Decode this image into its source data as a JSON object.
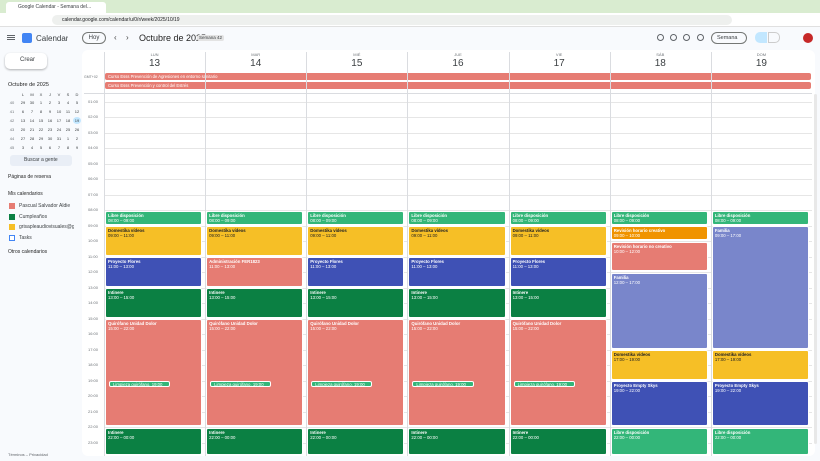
{
  "browser": {
    "tab": "Google Calendar - Semana del...",
    "url": "calendar.google.com/calendar/u/0/r/week/2025/10/19"
  },
  "header": {
    "app": "Calendar",
    "today": "Hoy",
    "period": "Octubre de 2025",
    "week": "Semana 42",
    "view": "Semana"
  },
  "sidebar": {
    "create": "Crear",
    "mini_title": "Octubre de 2025",
    "weekdays": [
      "L",
      "M",
      "X",
      "J",
      "V",
      "S",
      "D"
    ],
    "weeks": [
      {
        "num": "40",
        "days": [
          "29",
          "30",
          "1",
          "2",
          "3",
          "4",
          "5"
        ]
      },
      {
        "num": "41",
        "days": [
          "6",
          "7",
          "8",
          "9",
          "10",
          "11",
          "12"
        ]
      },
      {
        "num": "42",
        "days": [
          "13",
          "14",
          "15",
          "16",
          "17",
          "18",
          "19"
        ]
      },
      {
        "num": "43",
        "days": [
          "20",
          "21",
          "22",
          "23",
          "24",
          "25",
          "26"
        ]
      },
      {
        "num": "44",
        "days": [
          "27",
          "28",
          "29",
          "30",
          "31",
          "1",
          "2"
        ]
      },
      {
        "num": "45",
        "days": [
          "3",
          "4",
          "5",
          "6",
          "7",
          "8",
          "9"
        ]
      }
    ],
    "search": "Buscar a gente",
    "booking": "Páginas de reserva",
    "my_title": "Mis calendarios",
    "my_calendars": [
      {
        "name": "Pascual Salvador Aldie",
        "color": "#e67c73"
      },
      {
        "name": "Cumpleaños",
        "color": "#0b8043"
      },
      {
        "name": "grisapleaudiovisuales@g...",
        "color": "#f6bf26"
      },
      {
        "name": "Tasks",
        "color": "#4285f4"
      }
    ],
    "other_title": "Otros calendarios",
    "footer": "Términos – Privacidad"
  },
  "timezone": "GMT+02",
  "all_day": [
    {
      "title": "Curso Esss Prevención de Agresiones en entorno sanitario",
      "color": "#e67c73"
    },
    {
      "title": "Curso Esss Prevención y control del Estrés",
      "color": "#e67c73"
    }
  ],
  "hours": [
    "01:00",
    "02:00",
    "03:00",
    "04:00",
    "05:00",
    "06:00",
    "07:00",
    "08:00",
    "09:00",
    "10:00",
    "11:00",
    "12:00",
    "13:00",
    "14:00",
    "15:00",
    "16:00",
    "17:00",
    "18:00",
    "19:00",
    "20:00",
    "21:00",
    "22:00",
    "23:00"
  ],
  "days": [
    {
      "dow": "LUN",
      "num": "13",
      "events": [
        {
          "title": "Libre disposición",
          "time": "08:00 – 09:00",
          "color": "#33b679"
        },
        {
          "title": "Domestika vídeos",
          "time": "09:00 – 11:00",
          "color": "#f6bf26"
        },
        {
          "title": "Proyecto Flores",
          "time": "11:00 – 13:00",
          "color": "#3f51b5"
        },
        {
          "title": "Intinere",
          "time": "13:00 – 15:00",
          "color": "#0b8043"
        },
        {
          "title": "Quirófano Unidad Dolor",
          "time": "15:00 – 22:00",
          "color": "#e67c73",
          "sub": "Limpieza quirófano, 19:00"
        },
        {
          "title": "Intinere",
          "time": "22:00 – 00:00",
          "color": "#0b8043"
        }
      ]
    },
    {
      "dow": "MAR",
      "num": "14",
      "events": [
        {
          "title": "Libre disposición",
          "time": "08:00 – 09:00",
          "color": "#33b679"
        },
        {
          "title": "Domestika vídeos",
          "time": "09:00 – 11:00",
          "color": "#f6bf26"
        },
        {
          "title": "Administración FER1823",
          "time": "11:00 – 13:00",
          "color": "#e67c73"
        },
        {
          "title": "Intinere",
          "time": "13:00 – 15:00",
          "color": "#0b8043"
        },
        {
          "title": "Quirófano Unidad Dolor",
          "time": "15:00 – 22:00",
          "color": "#e67c73",
          "sub": "Limpieza quirófano, 19:00"
        },
        {
          "title": "Intinere",
          "time": "22:00 – 00:00",
          "color": "#0b8043"
        }
      ]
    },
    {
      "dow": "MIÉ",
      "num": "15",
      "events": [
        {
          "title": "Libre disposición",
          "time": "08:00 – 09:00",
          "color": "#33b679"
        },
        {
          "title": "Domestika vídeos",
          "time": "09:00 – 11:00",
          "color": "#f6bf26"
        },
        {
          "title": "Proyecto Flores",
          "time": "11:00 – 13:00",
          "color": "#3f51b5"
        },
        {
          "title": "Intinere",
          "time": "13:00 – 15:00",
          "color": "#0b8043"
        },
        {
          "title": "Quirófano Unidad Dolor",
          "time": "15:00 – 22:00",
          "color": "#e67c73",
          "sub": "Limpieza quirófano, 19:00"
        },
        {
          "title": "Intinere",
          "time": "22:00 – 00:00",
          "color": "#0b8043"
        }
      ]
    },
    {
      "dow": "JUE",
      "num": "16",
      "events": [
        {
          "title": "Libre disposición",
          "time": "08:00 – 09:00",
          "color": "#33b679"
        },
        {
          "title": "Domestika vídeos",
          "time": "09:00 – 11:00",
          "color": "#f6bf26"
        },
        {
          "title": "Proyecto Flores",
          "time": "11:00 – 13:00",
          "color": "#3f51b5"
        },
        {
          "title": "Intinere",
          "time": "13:00 – 15:00",
          "color": "#0b8043"
        },
        {
          "title": "Quirófano Unidad Dolor",
          "time": "15:00 – 22:00",
          "color": "#e67c73",
          "sub": "Limpieza quirófano, 19:00"
        },
        {
          "title": "Intinere",
          "time": "22:00 – 00:00",
          "color": "#0b8043"
        }
      ]
    },
    {
      "dow": "VIE",
      "num": "17",
      "events": [
        {
          "title": "Libre disposición",
          "time": "08:00 – 09:00",
          "color": "#33b679"
        },
        {
          "title": "Domestika vídeos",
          "time": "09:00 – 11:00",
          "color": "#f6bf26"
        },
        {
          "title": "Proyecto Flores",
          "time": "11:00 – 13:00",
          "color": "#3f51b5"
        },
        {
          "title": "Intinere",
          "time": "13:00 – 15:00",
          "color": "#0b8043"
        },
        {
          "title": "Quirófano Unidad Dolor",
          "time": "15:00 – 22:00",
          "color": "#e67c73",
          "sub": "Limpieza quirófano, 19:00"
        },
        {
          "title": "Intinere",
          "time": "22:00 – 00:00",
          "color": "#0b8043"
        }
      ]
    },
    {
      "dow": "SÁB",
      "num": "18",
      "events": [
        {
          "title": "Libre disposición",
          "time": "08:00 – 09:00",
          "color": "#33b679"
        },
        {
          "title": "Revisión horario creativo",
          "time": "09:00 – 10:00",
          "color": "#f09300"
        },
        {
          "title": "Revisión horario no creativo",
          "time": "10:00 – 12:00",
          "color": "#e67c73"
        },
        {
          "title": "Familia",
          "time": "12:00 – 17:00",
          "color": "#7986cb"
        },
        {
          "title": "Domestika vídeos",
          "time": "17:00 – 19:00",
          "color": "#f6bf26"
        },
        {
          "title": "Proyecto Empty Skys",
          "time": "19:00 – 22:00",
          "color": "#3f51b5"
        },
        {
          "title": "Libre disposición",
          "time": "22:00 – 00:00",
          "color": "#33b679"
        }
      ]
    },
    {
      "dow": "DOM",
      "num": "19",
      "events": [
        {
          "title": "Libre disposición",
          "time": "08:00 – 09:00",
          "color": "#33b679"
        },
        {
          "title": "Familia",
          "time": "09:00 – 17:00",
          "color": "#7986cb"
        },
        {
          "title": "Domestika vídeos",
          "time": "17:00 – 19:00",
          "color": "#f6bf26"
        },
        {
          "title": "Proyecto Empty Skys",
          "time": "19:00 – 22:00",
          "color": "#3f51b5"
        },
        {
          "title": "Libre disposición",
          "time": "22:00 – 00:00",
          "color": "#33b679"
        }
      ]
    }
  ]
}
